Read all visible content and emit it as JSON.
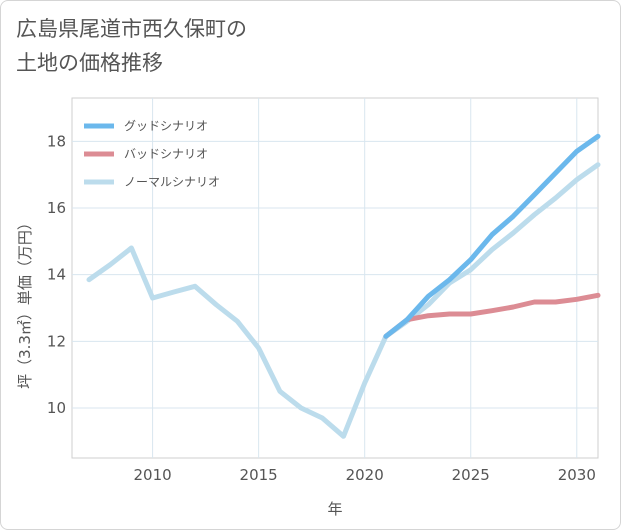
{
  "title": {
    "line1": "広島県尾道市西久保町の",
    "line2": "土地の価格推移"
  },
  "chart_data": {
    "type": "line",
    "xlabel": "年",
    "ylabel": "坪（3.3㎡）単価（万円）",
    "xlim": [
      2006.2,
      2031.0
    ],
    "ylim": [
      8.5,
      19.3
    ],
    "x_ticks": [
      2010,
      2015,
      2020,
      2025,
      2030
    ],
    "y_ticks": [
      10,
      12,
      14,
      16,
      18
    ],
    "grid": true,
    "legend_position": "top-left",
    "series": [
      {
        "name": "グッドシナリオ",
        "color": "#6bb8ec",
        "width": 5,
        "x": [
          2021,
          2022,
          2023,
          2024,
          2025,
          2026,
          2027,
          2028,
          2029,
          2030,
          2031
        ],
        "y": [
          12.15,
          12.65,
          13.35,
          13.85,
          14.45,
          15.2,
          15.75,
          16.4,
          17.05,
          17.7,
          18.15
        ]
      },
      {
        "name": "バッドシナリオ",
        "color": "#dc8c94",
        "width": 5,
        "x": [
          2021,
          2022,
          2023,
          2024,
          2025,
          2026,
          2027,
          2028,
          2029,
          2030,
          2031
        ],
        "y": [
          12.15,
          12.65,
          12.77,
          12.82,
          12.82,
          12.92,
          13.03,
          13.18,
          13.18,
          13.26,
          13.38
        ]
      },
      {
        "name": "ノーマルシナリオ",
        "color": "#bcdcec",
        "width": 5,
        "x": [
          2007,
          2008,
          2009,
          2010,
          2011,
          2012,
          2013,
          2014,
          2015,
          2016,
          2017,
          2018,
          2019,
          2020,
          2021,
          2022,
          2023,
          2024,
          2025,
          2026,
          2027,
          2028,
          2029,
          2030,
          2031
        ],
        "y": [
          13.85,
          14.3,
          14.8,
          13.3,
          13.48,
          13.65,
          13.1,
          12.6,
          11.8,
          10.5,
          10.0,
          9.7,
          9.15,
          10.75,
          12.15,
          12.6,
          13.1,
          13.75,
          14.15,
          14.75,
          15.25,
          15.8,
          16.3,
          16.85,
          17.3
        ]
      }
    ]
  }
}
